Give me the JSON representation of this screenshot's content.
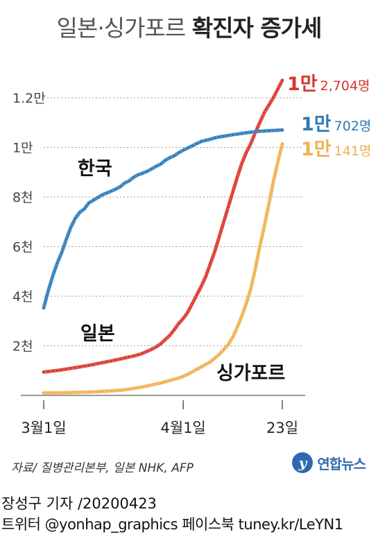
{
  "title": {
    "light": "일본·싱가포르",
    "bold": "확진자 증가세"
  },
  "source": "자료/ 질병관리본부, 일본 NHK, AFP",
  "brand": {
    "logo": "y",
    "name": "연합뉴스"
  },
  "credits": {
    "line1": "장성구 기자  /20200423",
    "line2": "트위터 @yonhap_graphics  페이스북 tuney.kr/LeYN1"
  },
  "chart_data": {
    "type": "line",
    "x": [
      "2020-03-01",
      "2020-03-02",
      "2020-03-03",
      "2020-03-04",
      "2020-03-05",
      "2020-03-06",
      "2020-03-07",
      "2020-03-08",
      "2020-03-09",
      "2020-03-10",
      "2020-03-11",
      "2020-03-12",
      "2020-03-13",
      "2020-03-14",
      "2020-03-15",
      "2020-03-16",
      "2020-03-17",
      "2020-03-18",
      "2020-03-19",
      "2020-03-20",
      "2020-03-21",
      "2020-03-22",
      "2020-03-23",
      "2020-03-24",
      "2020-03-25",
      "2020-03-26",
      "2020-03-27",
      "2020-03-28",
      "2020-03-29",
      "2020-03-30",
      "2020-03-31",
      "2020-04-01",
      "2020-04-02",
      "2020-04-03",
      "2020-04-04",
      "2020-04-05",
      "2020-04-06",
      "2020-04-07",
      "2020-04-08",
      "2020-04-09",
      "2020-04-10",
      "2020-04-11",
      "2020-04-12",
      "2020-04-13",
      "2020-04-14",
      "2020-04-15",
      "2020-04-16",
      "2020-04-17",
      "2020-04-18",
      "2020-04-19",
      "2020-04-20",
      "2020-04-21",
      "2020-04-22",
      "2020-04-23"
    ],
    "x_ticks": [
      {
        "x": "2020-03-01",
        "label": "3월1일"
      },
      {
        "x": "2020-04-01",
        "label": "4월1일"
      },
      {
        "x": "2020-04-23",
        "label": "23일"
      }
    ],
    "y_ticks": [
      {
        "value": 2000,
        "label": "2천"
      },
      {
        "value": 4000,
        "label": "4천"
      },
      {
        "value": 6000,
        "label": "6천"
      },
      {
        "value": 8000,
        "label": "8천"
      },
      {
        "value": 10000,
        "label": "1만"
      },
      {
        "value": 12000,
        "label": "1.2만"
      }
    ],
    "ylim": [
      0,
      13000
    ],
    "grid": true,
    "series": [
      {
        "name": "한국",
        "color": "#2b7ab8",
        "end_label": {
          "big": "1만",
          "small": "702명"
        },
        "values": [
          3526,
          4212,
          4812,
          5328,
          5766,
          6284,
          6767,
          7134,
          7382,
          7513,
          7755,
          7869,
          7979,
          8086,
          8162,
          8236,
          8320,
          8413,
          8565,
          8652,
          8799,
          8897,
          8961,
          9037,
          9137,
          9241,
          9332,
          9478,
          9583,
          9661,
          9786,
          9887,
          9976,
          10062,
          10156,
          10237,
          10284,
          10331,
          10384,
          10423,
          10450,
          10480,
          10512,
          10537,
          10564,
          10591,
          10613,
          10635,
          10653,
          10661,
          10674,
          10683,
          10694,
          10702
        ]
      },
      {
        "name": "일본",
        "color": "#d9352b",
        "end_label": {
          "big": "1만",
          "small": "2,704명"
        },
        "values": [
          945,
          962,
          985,
          1007,
          1032,
          1060,
          1090,
          1120,
          1150,
          1180,
          1210,
          1245,
          1285,
          1320,
          1355,
          1390,
          1430,
          1465,
          1510,
          1550,
          1590,
          1640,
          1700,
          1780,
          1860,
          1960,
          2080,
          2250,
          2420,
          2650,
          2900,
          3100,
          3350,
          3700,
          4050,
          4400,
          4800,
          5300,
          5800,
          6400,
          7000,
          7600,
          8200,
          8800,
          9350,
          9800,
          10150,
          10600,
          11000,
          11400,
          11700,
          12000,
          12350,
          12704
        ]
      },
      {
        "name": "싱가포르",
        "color": "#f0b050",
        "end_label": {
          "big": "1만",
          "small": "141명"
        },
        "values": [
          100,
          102,
          103,
          105,
          107,
          110,
          113,
          117,
          122,
          128,
          135,
          143,
          152,
          162,
          172,
          182,
          195,
          210,
          230,
          255,
          280,
          310,
          345,
          380,
          420,
          460,
          500,
          550,
          600,
          650,
          700,
          770,
          850,
          950,
          1050,
          1150,
          1250,
          1350,
          1500,
          1650,
          1850,
          2050,
          2350,
          2750,
          3200,
          3700,
          4300,
          5100,
          6000,
          6800,
          7700,
          8600,
          9400,
          10141
        ]
      }
    ]
  }
}
